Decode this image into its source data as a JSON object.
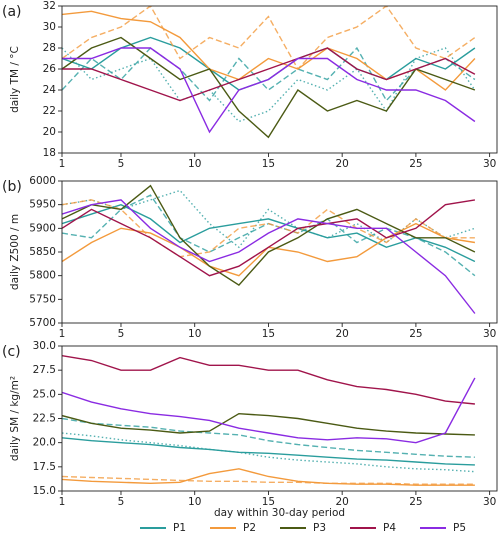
{
  "chart_data": [
    {
      "type": "line",
      "panel_label": "(a)",
      "ylabel": "daily TM / °C",
      "x": [
        1,
        3,
        5,
        7,
        9,
        11,
        13,
        15,
        17,
        19,
        21,
        23,
        25,
        27,
        29
      ],
      "xlim": [
        1,
        30.5
      ],
      "xticks": [
        1,
        5,
        10,
        15,
        20,
        25,
        30
      ],
      "ylim": [
        18,
        32
      ],
      "yticks": [
        18,
        20,
        22,
        24,
        26,
        28,
        30,
        32
      ],
      "series": [
        {
          "color": "#2a9d9d",
          "lines": [
            {
              "style": "solid",
              "values": [
                27,
                26,
                28,
                29,
                28,
                26,
                24,
                25,
                27,
                28,
                26,
                25,
                27,
                26,
                28
              ]
            },
            {
              "style": "dashed",
              "values": [
                24,
                27,
                25,
                28,
                26,
                23,
                27,
                24,
                26,
                25,
                28,
                23,
                26,
                27,
                25
              ]
            },
            {
              "style": "dotted",
              "values": [
                28,
                25,
                26,
                27,
                23,
                24,
                21,
                22,
                25,
                24,
                26,
                22,
                27,
                28,
                24
              ]
            }
          ]
        },
        {
          "color": "#f39a3c",
          "lines": [
            {
              "style": "solid",
              "values": [
                31.2,
                31.5,
                30.8,
                30.5,
                29,
                26,
                25,
                27,
                26,
                28,
                27,
                25,
                26,
                24,
                27
              ]
            },
            {
              "style": "dashed",
              "values": [
                27,
                29,
                30,
                32,
                27,
                29,
                28,
                31,
                26,
                29,
                30,
                32,
                28,
                27,
                29
              ]
            }
          ]
        },
        {
          "color": "#4b5a14",
          "lines": [
            {
              "style": "solid",
              "values": [
                26,
                28,
                29,
                27,
                25,
                26,
                22,
                19.5,
                24,
                22,
                23,
                22,
                26,
                25,
                24
              ]
            }
          ]
        },
        {
          "color": "#a0144b",
          "lines": [
            {
              "style": "solid",
              "values": [
                26,
                26,
                25,
                24,
                23,
                24,
                25,
                26,
                27,
                28,
                26,
                25,
                26,
                27,
                25.5
              ]
            }
          ]
        },
        {
          "color": "#8a2be2",
          "lines": [
            {
              "style": "solid",
              "values": [
                27,
                27,
                28,
                28,
                26,
                20,
                24,
                25,
                27,
                27,
                25,
                24,
                24,
                23,
                21
              ]
            }
          ]
        }
      ]
    },
    {
      "type": "line",
      "panel_label": "(b)",
      "ylabel": "daily Z500 / m",
      "x": [
        1,
        3,
        5,
        7,
        9,
        11,
        13,
        15,
        17,
        19,
        21,
        23,
        25,
        27,
        29
      ],
      "xlim": [
        1,
        30.5
      ],
      "xticks": [
        1,
        5,
        10,
        15,
        20,
        25,
        30
      ],
      "ylim": [
        5700,
        6000
      ],
      "yticks": [
        5700,
        5750,
        5800,
        5850,
        5900,
        5950,
        6000
      ],
      "series": [
        {
          "color": "#2a9d9d",
          "lines": [
            {
              "style": "solid",
              "values": [
                5910,
                5930,
                5950,
                5920,
                5870,
                5900,
                5910,
                5920,
                5900,
                5880,
                5890,
                5860,
                5880,
                5860,
                5830
              ]
            },
            {
              "style": "dashed",
              "values": [
                5890,
                5880,
                5940,
                5970,
                5880,
                5850,
                5880,
                5910,
                5890,
                5920,
                5870,
                5900,
                5880,
                5850,
                5800
              ]
            },
            {
              "style": "dotted",
              "values": [
                5950,
                5960,
                5940,
                5960,
                5980,
                5910,
                5860,
                5940,
                5900,
                5880,
                5910,
                5870,
                5920,
                5880,
                5900
              ]
            }
          ]
        },
        {
          "color": "#f39a3c",
          "lines": [
            {
              "style": "solid",
              "values": [
                5830,
                5870,
                5900,
                5890,
                5860,
                5820,
                5800,
                5860,
                5850,
                5830,
                5840,
                5880,
                5910,
                5880,
                5870
              ]
            },
            {
              "style": "dashed",
              "values": [
                5950,
                5960,
                5940,
                5880,
                5840,
                5850,
                5900,
                5910,
                5890,
                5940,
                5900,
                5870,
                5920,
                5880,
                5880
              ]
            }
          ]
        },
        {
          "color": "#4b5a14",
          "lines": [
            {
              "style": "solid",
              "values": [
                5920,
                5950,
                5940,
                5990,
                5880,
                5820,
                5780,
                5850,
                5880,
                5920,
                5940,
                5910,
                5880,
                5880,
                5850
              ]
            }
          ]
        },
        {
          "color": "#a0144b",
          "lines": [
            {
              "style": "solid",
              "values": [
                5900,
                5940,
                5910,
                5880,
                5840,
                5800,
                5820,
                5860,
                5900,
                5910,
                5920,
                5880,
                5900,
                5950,
                5960
              ]
            }
          ]
        },
        {
          "color": "#8a2be2",
          "lines": [
            {
              "style": "solid",
              "values": [
                5930,
                5950,
                5960,
                5900,
                5860,
                5830,
                5850,
                5890,
                5920,
                5910,
                5900,
                5900,
                5850,
                5800,
                5720
              ]
            }
          ]
        }
      ]
    },
    {
      "type": "line",
      "panel_label": "(c)",
      "ylabel": "daily SM / kg/m²",
      "xlabel": "day within 30-day period",
      "x": [
        1,
        3,
        5,
        7,
        9,
        11,
        13,
        15,
        17,
        19,
        21,
        23,
        25,
        27,
        29
      ],
      "xlim": [
        1,
        30.5
      ],
      "xticks": [
        1,
        5,
        10,
        15,
        20,
        25,
        30
      ],
      "ylim": [
        15,
        30
      ],
      "yticks": [
        {
          "value": 15,
          "label": "15.0"
        },
        {
          "value": 17.5,
          "label": "17.5"
        },
        {
          "value": 20,
          "label": "20.0"
        },
        {
          "value": 22.5,
          "label": "22.5"
        },
        {
          "value": 25,
          "label": "25.0"
        },
        {
          "value": 27.5,
          "label": "27.5"
        },
        {
          "value": 30,
          "label": "30.0"
        }
      ],
      "series": [
        {
          "name": "P1",
          "color": "#2a9d9d",
          "lines": [
            {
              "style": "solid",
              "values": [
                20.5,
                20.2,
                20,
                19.8,
                19.5,
                19.3,
                19,
                18.9,
                18.7,
                18.5,
                18.3,
                18.2,
                18,
                17.8,
                17.7
              ]
            },
            {
              "style": "dashed",
              "values": [
                22.5,
                22,
                21.8,
                21.6,
                21.2,
                21,
                20.8,
                20.2,
                19.8,
                19.5,
                19.2,
                19,
                18.8,
                18.6,
                18.5
              ]
            },
            {
              "style": "dotted",
              "values": [
                21,
                20.7,
                20.3,
                20,
                19.7,
                19.3,
                19,
                18.5,
                18.2,
                18,
                17.8,
                17.5,
                17.3,
                17.2,
                17
              ]
            }
          ]
        },
        {
          "name": "P2",
          "color": "#f39a3c",
          "lines": [
            {
              "style": "solid",
              "values": [
                16.2,
                16,
                15.9,
                15.8,
                15.9,
                16.8,
                17.3,
                16.5,
                16,
                15.8,
                15.7,
                15.7,
                15.6,
                15.6,
                15.6
              ]
            },
            {
              "style": "dashed",
              "values": [
                16.5,
                16.4,
                16.3,
                16.2,
                16.1,
                16,
                16,
                15.9,
                15.9,
                15.8,
                15.8,
                15.8,
                15.7,
                15.7,
                15.7
              ]
            }
          ]
        },
        {
          "name": "P3",
          "color": "#4b5a14",
          "lines": [
            {
              "style": "solid",
              "values": [
                22.8,
                22,
                21.5,
                21.3,
                21,
                21.2,
                23,
                22.8,
                22.5,
                22,
                21.5,
                21.2,
                21,
                20.9,
                20.8
              ]
            }
          ]
        },
        {
          "name": "P4",
          "color": "#a0144b",
          "lines": [
            {
              "style": "solid",
              "values": [
                29,
                28.5,
                27.5,
                27.5,
                28.8,
                28,
                28,
                27.5,
                27.5,
                26.5,
                25.8,
                25.5,
                25,
                24.3,
                24
              ]
            }
          ]
        },
        {
          "name": "P5",
          "color": "#8a2be2",
          "lines": [
            {
              "style": "solid",
              "values": [
                25.2,
                24.2,
                23.5,
                23,
                22.7,
                22.3,
                21.5,
                21,
                20.5,
                20.3,
                20.5,
                20.4,
                20,
                21,
                26.7
              ]
            }
          ]
        }
      ]
    }
  ]
}
